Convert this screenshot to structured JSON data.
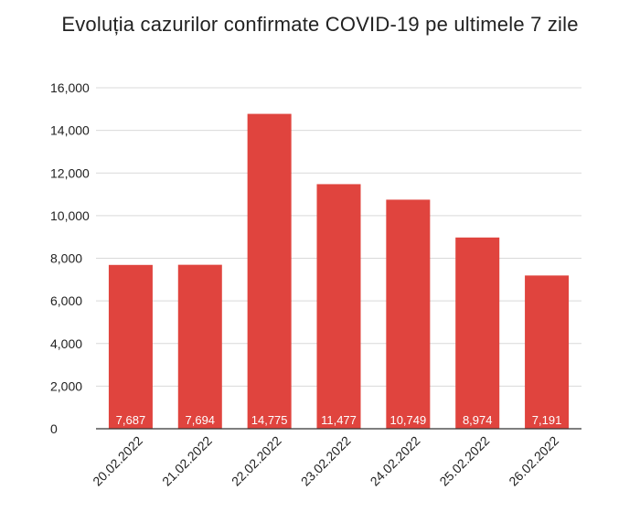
{
  "chart_data": {
    "type": "bar",
    "title": "Evoluția cazurilor confirmate COVID-19 pe ultimele 7 zile",
    "categories": [
      "20.02.2022",
      "21.02.2022",
      "22.02.2022",
      "23.02.2022",
      "24.02.2022",
      "25.02.2022",
      "26.02.2022"
    ],
    "values": [
      7687,
      7694,
      14775,
      11477,
      10749,
      8974,
      7191
    ],
    "data_labels": [
      "7,687",
      "7,694",
      "14,775",
      "11,477",
      "10,749",
      "8,974",
      "7,191"
    ],
    "ylim": [
      0,
      16000
    ],
    "yticks": [
      0,
      2000,
      4000,
      6000,
      8000,
      10000,
      12000,
      14000,
      16000
    ],
    "ytick_labels": [
      "0",
      "2,000",
      "4,000",
      "6,000",
      "8,000",
      "10,000",
      "12,000",
      "14,000",
      "16,000"
    ],
    "grid": true,
    "legend": "none",
    "bar_color": "#e0443e",
    "grid_color": "#d9d9d9",
    "axis_color": "#333333"
  }
}
